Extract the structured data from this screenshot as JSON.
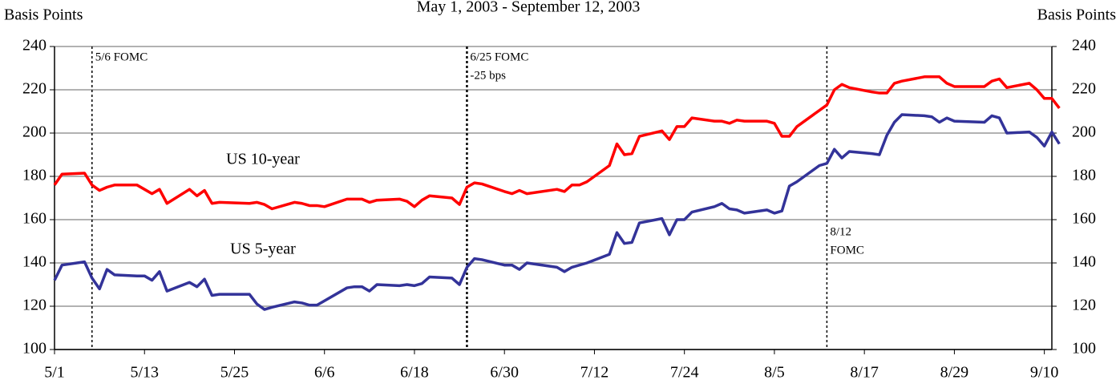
{
  "chart_data": {
    "type": "line",
    "title": "May 1, 2003 - September 12, 2003",
    "y_axis_label": "Basis Points",
    "y2_axis_label": "Basis Points",
    "x": [
      "5/1",
      "5/2",
      "5/5",
      "5/6",
      "5/7",
      "5/8",
      "5/9",
      "5/12",
      "5/13",
      "5/14",
      "5/15",
      "5/16",
      "5/19",
      "5/20",
      "5/21",
      "5/22",
      "5/23",
      "5/27",
      "5/28",
      "5/29",
      "5/30",
      "6/2",
      "6/3",
      "6/4",
      "6/5",
      "6/6",
      "6/9",
      "6/10",
      "6/11",
      "6/12",
      "6/13",
      "6/16",
      "6/17",
      "6/18",
      "6/19",
      "6/20",
      "6/23",
      "6/24",
      "6/25",
      "6/26",
      "6/27",
      "6/30",
      "7/1",
      "7/2",
      "7/3",
      "7/7",
      "7/8",
      "7/9",
      "7/10",
      "7/11",
      "7/14",
      "7/15",
      "7/16",
      "7/17",
      "7/18",
      "7/21",
      "7/22",
      "7/23",
      "7/24",
      "7/25",
      "7/28",
      "7/29",
      "7/30",
      "7/31",
      "8/1",
      "8/4",
      "8/5",
      "8/6",
      "8/7",
      "8/8",
      "8/11",
      "8/12",
      "8/13",
      "8/14",
      "8/15",
      "8/18",
      "8/19",
      "8/20",
      "8/21",
      "8/22",
      "8/25",
      "8/26",
      "8/27",
      "8/28",
      "8/29",
      "9/2",
      "9/3",
      "9/4",
      "9/5",
      "9/8",
      "9/9",
      "9/10",
      "9/11",
      "9/12"
    ],
    "series": [
      {
        "name": "US 10-year",
        "color": "#ff0000",
        "values": [
          176,
          181,
          181.5,
          176,
          173.5,
          175,
          176,
          176,
          174,
          172,
          174,
          167.5,
          174,
          171,
          173.5,
          167.5,
          168,
          167.5,
          168,
          167,
          165,
          168,
          167.5,
          166.5,
          166.5,
          166,
          169.5,
          169.5,
          169.5,
          168,
          169,
          169.5,
          168.5,
          166,
          169,
          171,
          170,
          167,
          175,
          177,
          176.5,
          173,
          172,
          173.5,
          172,
          174,
          173,
          176,
          176,
          177.5,
          185,
          195,
          190,
          190.5,
          198.5,
          201,
          197,
          203,
          203,
          207,
          205.5,
          205.5,
          204.5,
          206,
          205.5,
          205.5,
          204.5,
          198.5,
          198.5,
          203,
          210.5,
          213,
          220,
          222.5,
          221,
          219,
          218.5,
          218.5,
          223,
          224,
          226,
          226,
          226,
          223,
          221.5,
          221.5,
          224,
          225,
          221,
          223,
          220,
          216,
          216,
          211.5
        ]
      },
      {
        "name": "US 5-year",
        "color": "#333399",
        "values": [
          132,
          139,
          140.5,
          133,
          128,
          137,
          134.5,
          134,
          134,
          132,
          136,
          127,
          131,
          129,
          132.5,
          125,
          125.5,
          125.5,
          121,
          118.5,
          119.5,
          122,
          121.5,
          120.5,
          120.5,
          122.5,
          128.5,
          129,
          129,
          127,
          130,
          129.5,
          130,
          129.5,
          130.5,
          133.5,
          133,
          130,
          138,
          142,
          141.5,
          139,
          139,
          137,
          140,
          138,
          136,
          138,
          139,
          140,
          144,
          154,
          149,
          149.5,
          158.5,
          160.5,
          153,
          160,
          160,
          163.5,
          166,
          167.5,
          165,
          164.5,
          163,
          164.5,
          163,
          164,
          175.5,
          177.5,
          185,
          186,
          192.5,
          188.5,
          191.5,
          190.5,
          190,
          199,
          205,
          208.5,
          208,
          207.5,
          205,
          207,
          205.5,
          205,
          208,
          207,
          200,
          200.5,
          198,
          194,
          200.5,
          195
        ]
      }
    ],
    "xlim": [
      "5/1",
      "9/11"
    ],
    "xticks": [
      "5/1",
      "5/13",
      "5/25",
      "6/6",
      "6/18",
      "6/30",
      "7/12",
      "7/24",
      "8/5",
      "8/17",
      "8/29",
      "9/10"
    ],
    "ylim": [
      100,
      240
    ],
    "yticks": [
      100,
      120,
      140,
      160,
      180,
      200,
      220,
      240
    ],
    "y2lim": [
      100,
      240
    ],
    "y2ticks": [
      100,
      120,
      140,
      160,
      180,
      200,
      220,
      240
    ],
    "grid": true,
    "annotations": [
      {
        "x": "5/6",
        "lines": [
          "5/6 FOMC"
        ]
      },
      {
        "x": "6/25",
        "lines": [
          "6/25 FOMC",
          "-25 bps"
        ]
      },
      {
        "x": "8/12",
        "lines": [
          "8/12",
          "FOMC"
        ]
      }
    ]
  }
}
